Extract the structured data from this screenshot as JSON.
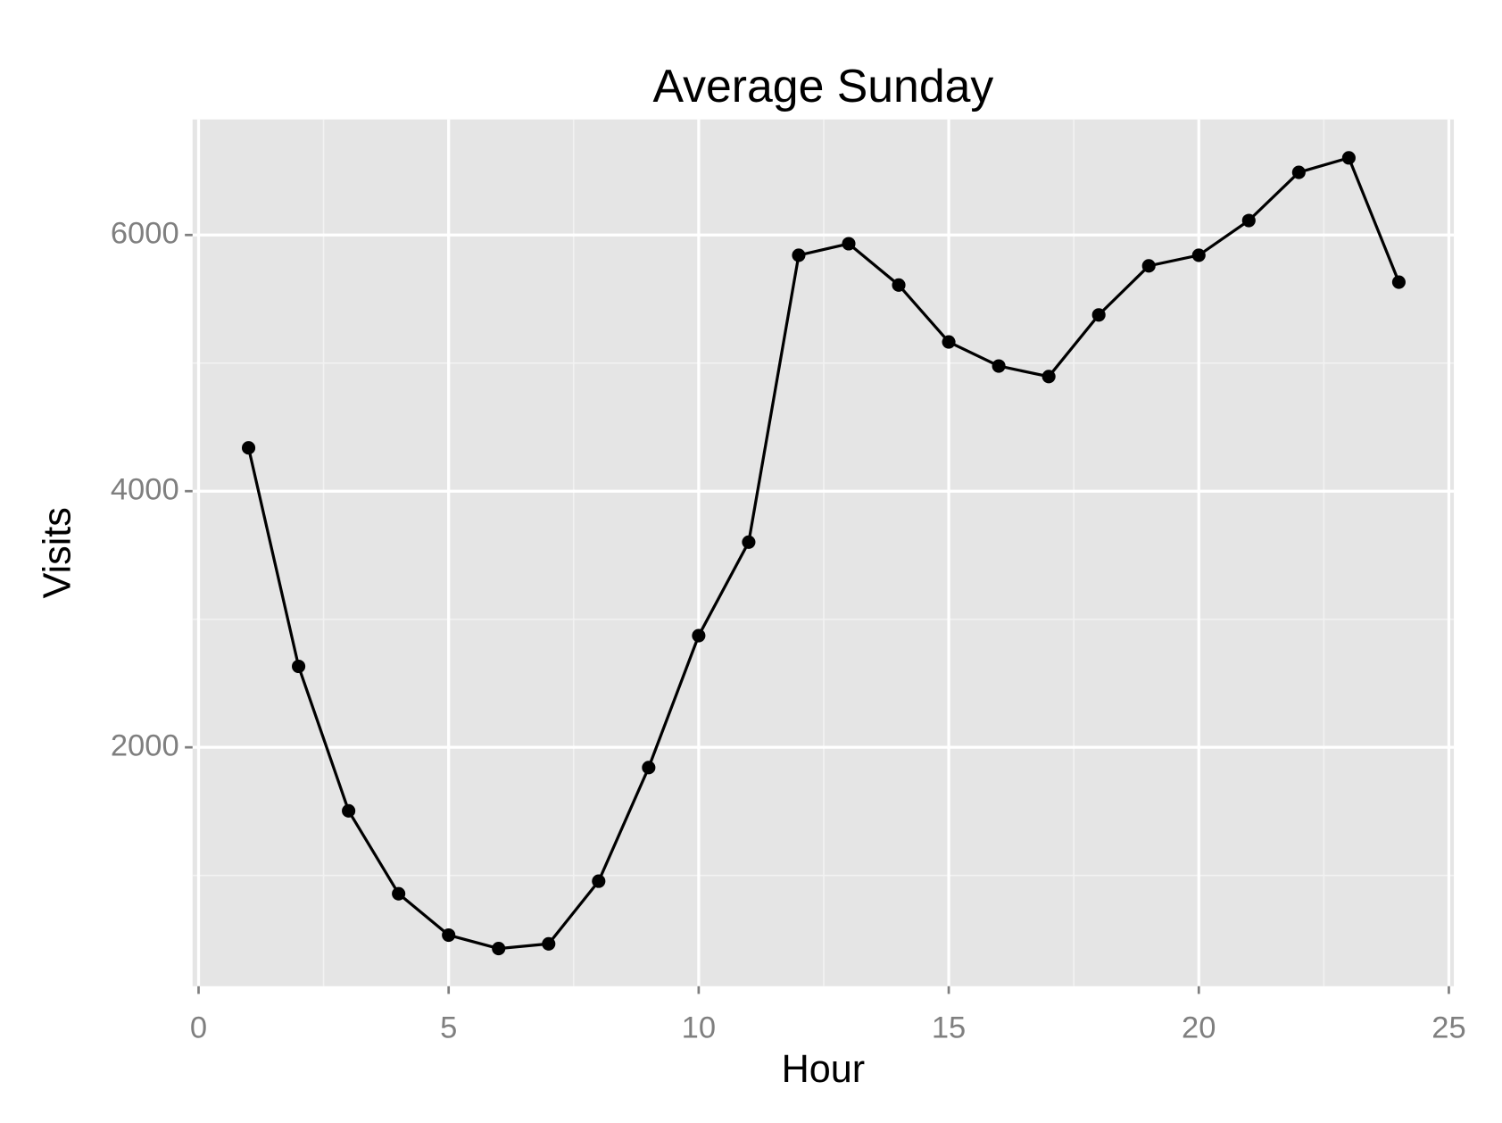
{
  "chart_data": {
    "type": "line",
    "title": "Average Sunday",
    "x_label": "Hour",
    "y_label": "Visits",
    "x": [
      1,
      2,
      3,
      4,
      5,
      6,
      7,
      8,
      9,
      10,
      11,
      12,
      13,
      14,
      15,
      16,
      17,
      18,
      19,
      20,
      21,
      22,
      23,
      24
    ],
    "series": [
      {
        "color": "#000000",
        "values": [
          4338,
          2632,
          1504,
          857,
          534,
          429,
          466,
          955,
          1842,
          2872,
          3602,
          5842,
          5932,
          5609,
          5165,
          4977,
          4895,
          5376,
          5759,
          5842,
          6113,
          6489,
          6602,
          5632
        ]
      }
    ],
    "xlim": [
      -0.12,
      25.1
    ],
    "xticks": [
      0,
      5,
      10,
      15,
      20,
      25
    ],
    "ylim": [
      135,
      6902
    ],
    "yticks": [
      2000,
      4000,
      6000
    ],
    "grid": true,
    "panel_color": "#e5e5e5"
  }
}
